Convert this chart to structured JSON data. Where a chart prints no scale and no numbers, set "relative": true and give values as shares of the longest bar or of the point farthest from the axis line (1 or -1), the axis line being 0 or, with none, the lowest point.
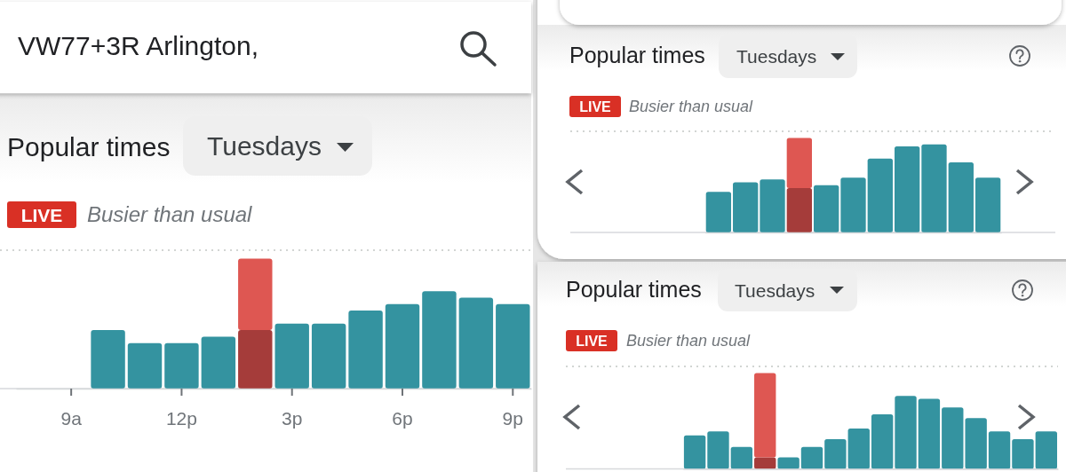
{
  "chart_data": [
    {
      "type": "bar",
      "title": "Popular times",
      "annotations": [
        "Tuesdays",
        "LIVE",
        "Busier than usual",
        "VW77+3R Arlington,"
      ],
      "categories": [
        null,
        "9a",
        null,
        null,
        "12p",
        null,
        null,
        "3p",
        null,
        null,
        "6p",
        null,
        null,
        "9p"
      ],
      "relative": true,
      "stacked": true,
      "series": [
        {
          "colors": [
            null,
            null,
            "#3493a0",
            "#3493a0",
            "#3493a0",
            "#3493a0",
            "#a53c3a",
            "#3493a0",
            "#3493a0",
            "#3493a0",
            "#3493a0",
            "#3493a0",
            "#3493a0",
            "#3493a0"
          ],
          "values": [
            null,
            null,
            0.45,
            0.35,
            0.35,
            0.4,
            0.45,
            0.5,
            0.5,
            0.6,
            0.65,
            0.75,
            0.7,
            0.65
          ]
        },
        {
          "color": "#de5752",
          "values": [
            null,
            null,
            null,
            null,
            null,
            null,
            0.55,
            null,
            null,
            null,
            null,
            null,
            null,
            null
          ]
        }
      ]
    },
    {
      "type": "bar",
      "title": "Popular times",
      "annotations": [
        "Tuesdays",
        "LIVE",
        "Busier than usual"
      ],
      "categories": [
        null,
        null,
        null,
        null,
        null,
        null,
        null,
        null,
        null,
        null,
        null
      ],
      "relative": true,
      "stacked": true,
      "series": [
        {
          "colors": [
            "#3493a0",
            "#3493a0",
            "#3493a0",
            "#a53c3a",
            "#3493a0",
            "#3493a0",
            "#3493a0",
            "#3493a0",
            "#3493a0",
            "#3493a0",
            "#3493a0"
          ],
          "values": [
            0.43,
            0.53,
            0.56,
            0.47,
            0.5,
            0.58,
            0.78,
            0.91,
            0.93,
            0.74,
            0.58
          ]
        },
        {
          "color": "#de5752",
          "values": [
            null,
            null,
            null,
            0.53,
            null,
            null,
            null,
            null,
            null,
            null,
            null
          ]
        }
      ]
    },
    {
      "type": "bar",
      "title": "Popular times",
      "annotations": [
        "Tuesdays",
        "LIVE",
        "Busier than usual"
      ],
      "categories": [
        null,
        null,
        null,
        null,
        null,
        null,
        null,
        null,
        null,
        null,
        null,
        null,
        null,
        null,
        null,
        null
      ],
      "relative": true,
      "stacked": true,
      "series": [
        {
          "colors": [
            "#3493a0",
            "#3493a0",
            "#3493a0",
            "#a53c3a",
            "#3493a0",
            "#3493a0",
            "#3493a0",
            "#3493a0",
            "#3493a0",
            "#3493a0",
            "#3493a0",
            "#3493a0",
            "#3493a0",
            "#3493a0",
            "#3493a0",
            "#3493a0"
          ],
          "values": [
            0.35,
            0.39,
            0.23,
            0.12,
            0.12,
            0.23,
            0.31,
            0.42,
            0.57,
            0.76,
            0.73,
            0.64,
            0.53,
            0.39,
            0.31,
            0.39
          ]
        },
        {
          "color": "#de5752",
          "values": [
            null,
            null,
            null,
            0.88,
            null,
            null,
            null,
            null,
            null,
            null,
            null,
            null,
            null,
            null,
            null,
            null
          ]
        }
      ]
    }
  ]
}
